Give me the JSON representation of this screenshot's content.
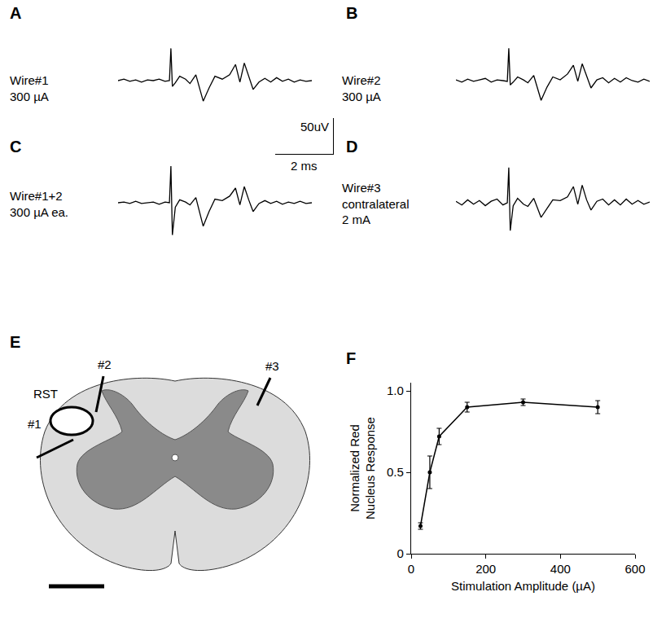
{
  "chart_data": [
    {
      "panel": "A",
      "type": "line",
      "text": [
        "Wire#1",
        "300 µA"
      ],
      "color": "#000000",
      "x": [
        -1.8,
        -1.6,
        -1.4,
        -1.2,
        -1.0,
        -0.8,
        -0.6,
        -0.4,
        -0.2,
        -0.05,
        0,
        0.05,
        0.15,
        0.3,
        0.5,
        0.65,
        0.85,
        1.1,
        1.3,
        1.5,
        1.75,
        2.0,
        2.2,
        2.35,
        2.5,
        2.65,
        2.8,
        3.0,
        3.2,
        3.4,
        3.6,
        3.8,
        4.0,
        4.2,
        4.4,
        4.6,
        4.8
      ],
      "values": [
        0,
        2,
        -1,
        1,
        -2,
        1,
        0,
        2,
        -1,
        0,
        44,
        -8,
        -3,
        6,
        2,
        -4,
        8,
        -28,
        -10,
        6,
        2,
        8,
        22,
        -2,
        24,
        5,
        -12,
        -2,
        3,
        -2,
        4,
        -1,
        2,
        -2,
        1,
        -1,
        0
      ],
      "xlim": [
        -1.8,
        4.8
      ],
      "ylim": [
        -60,
        60
      ],
      "tick_labels": false
    },
    {
      "panel": "B",
      "type": "line",
      "text": [
        "Wire#2",
        "300 µA"
      ],
      "color": "#000000",
      "x": [
        -1.8,
        -1.6,
        -1.4,
        -1.2,
        -1.0,
        -0.8,
        -0.6,
        -0.4,
        -0.2,
        -0.05,
        0,
        0.05,
        0.15,
        0.3,
        0.5,
        0.65,
        0.85,
        1.1,
        1.3,
        1.5,
        1.75,
        2.0,
        2.2,
        2.35,
        2.5,
        2.65,
        2.8,
        3.0,
        3.2,
        3.4,
        3.6,
        3.8,
        4.0,
        4.2,
        4.4,
        4.6,
        4.8
      ],
      "values": [
        1,
        -2,
        2,
        -1,
        1,
        3,
        -2,
        1,
        0,
        -1,
        44,
        -6,
        -2,
        5,
        1,
        -3,
        7,
        -27,
        -9,
        5,
        1,
        9,
        21,
        -1,
        23,
        6,
        -10,
        1,
        4,
        -3,
        3,
        -2,
        4,
        0,
        -2,
        2,
        -1
      ],
      "xlim": [
        -1.8,
        4.8
      ],
      "ylim": [
        -60,
        60
      ],
      "tick_labels": false
    },
    {
      "panel": "C",
      "type": "line",
      "text": [
        "Wire#1+2",
        "300 µA ea."
      ],
      "color": "#000000",
      "x": [
        -1.8,
        -1.6,
        -1.4,
        -1.2,
        -1.0,
        -0.8,
        -0.6,
        -0.4,
        -0.2,
        -0.05,
        0,
        0.05,
        0.15,
        0.3,
        0.5,
        0.65,
        0.85,
        1.1,
        1.3,
        1.5,
        1.75,
        2.0,
        2.2,
        2.35,
        2.5,
        2.65,
        2.8,
        3.0,
        3.2,
        3.4,
        3.6,
        3.8,
        4.0,
        4.2,
        4.4,
        4.6,
        4.8
      ],
      "values": [
        0,
        1,
        -1,
        2,
        -1,
        0,
        1,
        -2,
        1,
        0,
        50,
        -44,
        -6,
        4,
        1,
        -3,
        7,
        -32,
        -12,
        5,
        3,
        9,
        20,
        -3,
        22,
        4,
        -12,
        -1,
        3,
        -1,
        2,
        -2,
        1,
        -1,
        2,
        -1,
        0
      ],
      "xlim": [
        -1.8,
        4.8
      ],
      "ylim": [
        -60,
        60
      ],
      "tick_labels": false,
      "scale_bar": {
        "time": 2,
        "time_label": "2 ms",
        "amplitude": 50,
        "amplitude_label": "50uV"
      }
    },
    {
      "panel": "D",
      "type": "line",
      "text": [
        "Wire#3",
        "contralateral",
        "2 mA"
      ],
      "color": "#000000",
      "x": [
        -1.8,
        -1.6,
        -1.4,
        -1.2,
        -1.0,
        -0.8,
        -0.6,
        -0.4,
        -0.2,
        -0.05,
        0,
        0.05,
        0.15,
        0.3,
        0.5,
        0.65,
        0.85,
        1.1,
        1.3,
        1.5,
        1.75,
        2.0,
        2.2,
        2.35,
        2.5,
        2.65,
        2.8,
        3.0,
        3.2,
        3.4,
        3.6,
        3.8,
        4.0,
        4.2,
        4.4,
        4.6,
        4.8
      ],
      "values": [
        2,
        -3,
        4,
        -2,
        3,
        -4,
        2,
        5,
        -3,
        0,
        48,
        -38,
        -4,
        6,
        -2,
        -5,
        6,
        -20,
        -8,
        4,
        3,
        8,
        22,
        -2,
        24,
        4,
        -10,
        2,
        5,
        -3,
        4,
        -3,
        5,
        -2,
        3,
        -2,
        1
      ],
      "xlim": [
        -1.8,
        4.8
      ],
      "ylim": [
        -60,
        60
      ],
      "tick_labels": false
    },
    {
      "panel": "F",
      "type": "line",
      "color": "#000000",
      "marker": "circle",
      "x": [
        25,
        50,
        75,
        150,
        300,
        500
      ],
      "values": [
        0.17,
        0.5,
        0.72,
        0.9,
        0.93,
        0.9
      ],
      "errors": [
        0.02,
        0.1,
        0.05,
        0.03,
        0.02,
        0.04
      ],
      "xlabel": "Stimulation Amplitude (µA)",
      "ylabel": [
        "Normalized Red",
        "Nucleus Response"
      ],
      "xlim": [
        0,
        600
      ],
      "xticks": [
        0,
        200,
        400,
        600
      ],
      "ylim": [
        0,
        1.05
      ],
      "yticks": [
        0,
        0.5,
        {
          "value": 1,
          "label": "1.0"
        }
      ],
      "grid": false
    }
  ],
  "diagram": {
    "panel": "E",
    "labels": {
      "tract": "RST",
      "wire1": "#1",
      "wire2": "#2",
      "wire3": "#3"
    }
  }
}
